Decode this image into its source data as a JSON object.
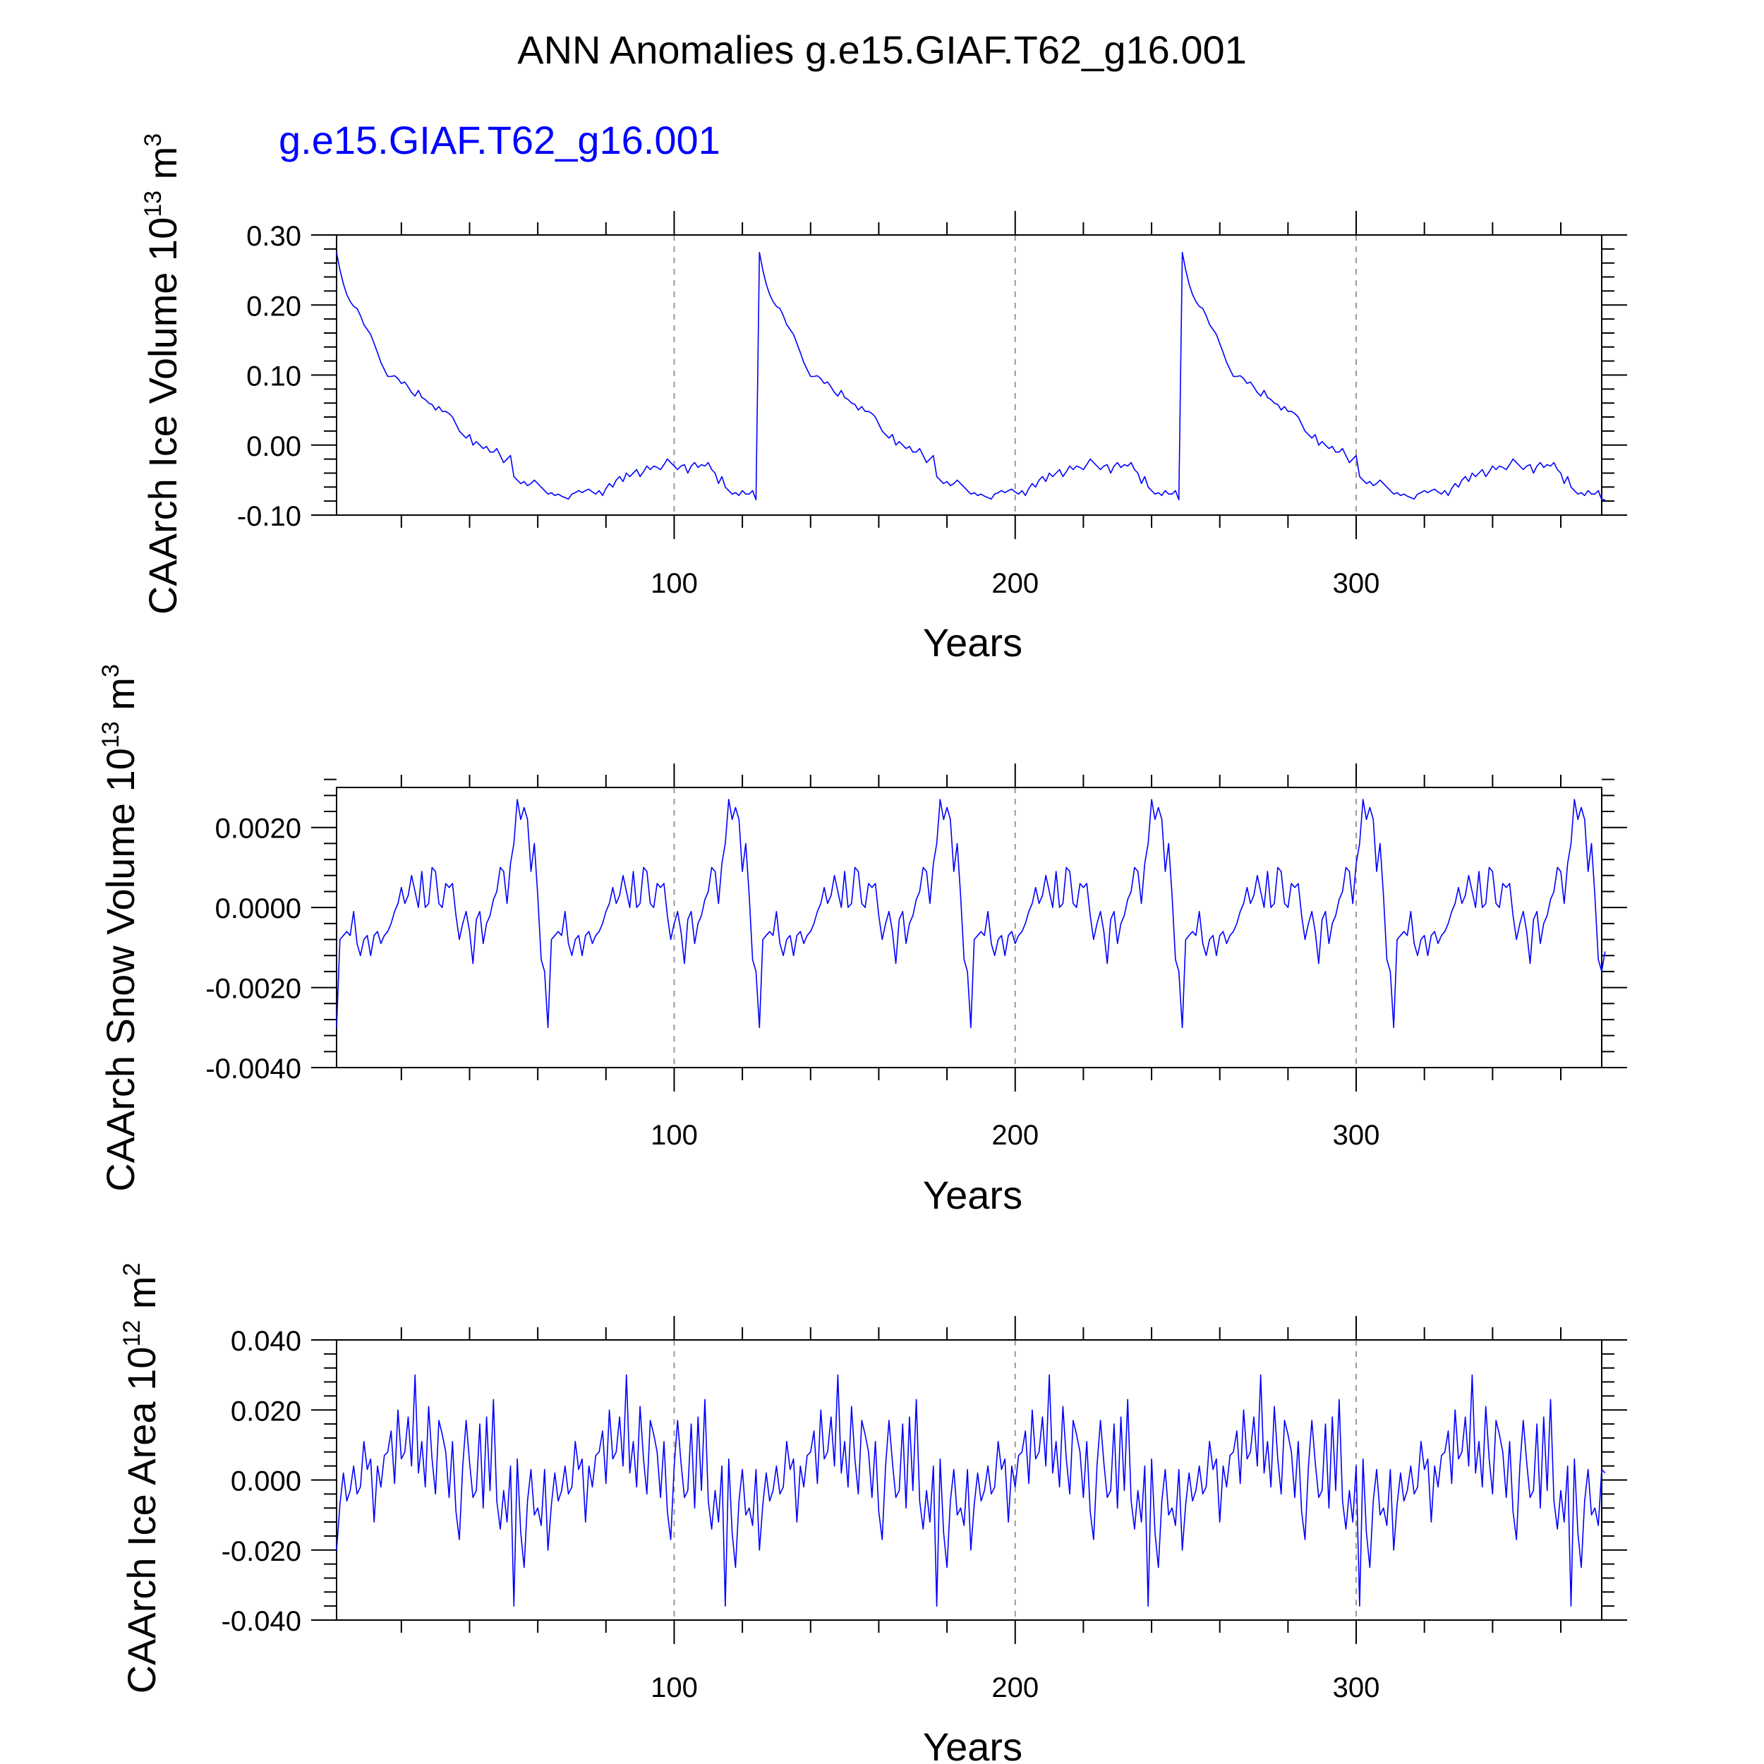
{
  "title": "ANN Anomalies g.e15.GIAF.T62_g16.001",
  "subtitle": "g.e15.GIAF.T62_g16.001",
  "colors": {
    "series": "#0000ff",
    "axes": "#000000",
    "grid": "#999999",
    "background": "#ffffff"
  },
  "chart_data": [
    {
      "type": "line",
      "ylabel_main": "CAArch Ice Volume 10",
      "ylabel_exp": "13",
      "ylabel_unit": " m",
      "ylabel_unit_exp": "3",
      "xlabel": "Years",
      "xlim": [
        1,
        372
      ],
      "ylim": [
        -0.1,
        0.3
      ],
      "xticks": [
        100,
        200,
        300
      ],
      "xtick_labels": [
        "100",
        "200",
        "300"
      ],
      "yticks": [
        -0.1,
        0.0,
        0.1,
        0.2,
        0.3
      ],
      "ytick_labels": [
        "-0.10",
        "0.00",
        "0.10",
        "0.20",
        "0.30"
      ],
      "grid": "dashed vertical lines at x = 100, 200, 300",
      "cycle_years": 124,
      "cycle_starts": [
        1,
        125,
        249
      ],
      "cycle_values": [
        0.275,
        0.25,
        0.23,
        0.215,
        0.205,
        0.198,
        0.195,
        0.185,
        0.172,
        0.165,
        0.158,
        0.145,
        0.132,
        0.118,
        0.108,
        0.098,
        0.098,
        0.099,
        0.095,
        0.088,
        0.09,
        0.083,
        0.075,
        0.07,
        0.078,
        0.068,
        0.065,
        0.06,
        0.058,
        0.05,
        0.055,
        0.048,
        0.048,
        0.045,
        0.04,
        0.03,
        0.02,
        0.015,
        0.01,
        0.015,
        0.0,
        0.005,
        0.0,
        -0.005,
        -0.002,
        -0.01,
        -0.01,
        -0.005,
        -0.015,
        -0.025,
        -0.02,
        -0.015,
        -0.045,
        -0.05,
        -0.055,
        -0.052,
        -0.058,
        -0.055,
        -0.05,
        -0.055,
        -0.06,
        -0.065,
        -0.07,
        -0.068,
        -0.072,
        -0.07,
        -0.073,
        -0.075,
        -0.077,
        -0.07,
        -0.068,
        -0.065,
        -0.068,
        -0.065,
        -0.063,
        -0.067,
        -0.07,
        -0.065,
        -0.072,
        -0.062,
        -0.055,
        -0.06,
        -0.05,
        -0.045,
        -0.052,
        -0.04,
        -0.045,
        -0.04,
        -0.035,
        -0.045,
        -0.038,
        -0.03,
        -0.035,
        -0.03,
        -0.032,
        -0.035,
        -0.028,
        -0.02,
        -0.025,
        -0.03,
        -0.035,
        -0.03,
        -0.028,
        -0.04,
        -0.03,
        -0.025,
        -0.032,
        -0.028,
        -0.03,
        -0.025,
        -0.035,
        -0.04,
        -0.055,
        -0.045,
        -0.06,
        -0.065,
        -0.07,
        -0.068,
        -0.072,
        -0.065,
        -0.07,
        -0.07,
        -0.065,
        -0.078
      ],
      "extra_x": [
        373
      ],
      "extra_values": [
        -0.078
      ]
    },
    {
      "type": "line",
      "ylabel_main": "CAArch Snow Volume 10",
      "ylabel_exp": "13",
      "ylabel_unit": " m",
      "ylabel_unit_exp": "3",
      "xlabel": "Years",
      "xlim": [
        1,
        372
      ],
      "ylim": [
        -0.004,
        0.003
      ],
      "xticks": [
        100,
        200,
        300
      ],
      "xtick_labels": [
        "100",
        "200",
        "300"
      ],
      "yticks": [
        -0.004,
        -0.002,
        0.0,
        0.002
      ],
      "ytick_labels": [
        "-0.0040",
        "-0.0020",
        "0.0000",
        "0.0020"
      ],
      "grid": "dashed vertical lines at x = 100, 200, 300",
      "cycle_years": 62,
      "cycle_starts": [
        1,
        63,
        125,
        187,
        249,
        311
      ],
      "cycle_values": [
        -0.003,
        -0.0008,
        -0.0007,
        -0.0006,
        -0.0007,
        -0.0001,
        -0.0009,
        -0.0012,
        -0.0008,
        -0.0007,
        -0.0012,
        -0.0007,
        -0.0006,
        -0.0009,
        -0.0007,
        -0.0006,
        -0.0004,
        -0.0001,
        0.0001,
        0.0005,
        0.0001,
        0.0003,
        0.0008,
        0.0004,
        0.0,
        0.0009,
        0.0,
        0.0001,
        0.001,
        0.0009,
        0.0001,
        0.0,
        0.0006,
        0.0005,
        0.0006,
        -0.0002,
        -0.0008,
        -0.0004,
        -0.0001,
        -0.0006,
        -0.0014,
        -0.0003,
        -0.0001,
        -0.0009,
        -0.0004,
        -0.0002,
        0.0002,
        0.0004,
        0.001,
        0.0009,
        0.0001,
        0.0011,
        0.0016,
        0.0027,
        0.0022,
        0.0025,
        0.0022,
        0.0009,
        0.0016,
        0.0003,
        -0.0013,
        -0.0016
      ],
      "extra_x": [
        373
      ],
      "extra_values": [
        -0.0011
      ]
    },
    {
      "type": "line",
      "ylabel_main": "CAArch Ice Area 10",
      "ylabel_exp": "12",
      "ylabel_unit": " m",
      "ylabel_unit_exp": "2",
      "xlabel": "Years",
      "xlim": [
        1,
        372
      ],
      "ylim": [
        -0.04,
        0.04
      ],
      "xticks": [
        100,
        200,
        300
      ],
      "xtick_labels": [
        "100",
        "200",
        "300"
      ],
      "yticks": [
        -0.04,
        -0.02,
        0.0,
        0.02,
        0.04
      ],
      "ytick_labels": [
        "-0.040",
        "-0.020",
        "0.000",
        "0.020",
        "0.040"
      ],
      "grid": "dashed vertical lines at x = 100, 200, 300",
      "cycle_years": 62,
      "cycle_starts": [
        1,
        63,
        125,
        187,
        249,
        311
      ],
      "cycle_values": [
        -0.02,
        -0.007,
        0.002,
        -0.006,
        -0.003,
        0.004,
        -0.004,
        -0.002,
        0.011,
        0.003,
        0.006,
        -0.012,
        0.004,
        -0.002,
        0.007,
        0.008,
        0.014,
        -0.001,
        0.02,
        0.006,
        0.008,
        0.018,
        0.004,
        0.03,
        0.002,
        0.011,
        -0.002,
        0.021,
        0.006,
        -0.004,
        0.017,
        0.013,
        0.008,
        -0.005,
        0.011,
        -0.009,
        -0.017,
        0.004,
        0.017,
        0.005,
        -0.005,
        -0.003,
        0.016,
        -0.008,
        0.018,
        -0.003,
        0.023,
        -0.006,
        -0.014,
        -0.003,
        -0.012,
        0.004,
        -0.036,
        0.006,
        -0.015,
        -0.025,
        -0.006,
        0.003,
        -0.01,
        -0.008,
        -0.013,
        0.003
      ],
      "extra_x": [
        373
      ],
      "extra_values": [
        0.002
      ]
    }
  ]
}
